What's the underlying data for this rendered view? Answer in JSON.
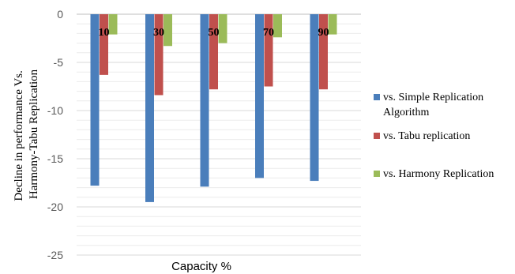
{
  "chart_data": {
    "type": "bar",
    "title": "",
    "xlabel": "Capacity %",
    "ylabel_lines": [
      "Decline in performance Vs.",
      "Harmony-Tabu Replication"
    ],
    "categories": [
      "10",
      "30",
      "50",
      "70",
      "90"
    ],
    "ylim": [
      -25,
      0
    ],
    "yticks": [
      0,
      -5,
      -10,
      -15,
      -20,
      -25
    ],
    "grid": true,
    "legend_position": "right",
    "series": [
      {
        "name": "vs. Simple Replication Algorithm",
        "name_lines": [
          "vs. Simple Replication",
          "Algorithm"
        ],
        "color": "#4a7ebb",
        "values": [
          -17.8,
          -19.5,
          -17.9,
          -17.0,
          -17.3
        ]
      },
      {
        "name": "vs. Tabu replication",
        "name_lines": [
          "vs. Tabu replication"
        ],
        "color": "#c0504d",
        "values": [
          -6.3,
          -8.4,
          -7.8,
          -7.5,
          -7.8
        ]
      },
      {
        "name": "vs. Harmony Replication",
        "name_lines": [
          "vs. Harmony Replication"
        ],
        "color": "#9bbb59",
        "values": [
          -2.1,
          -3.3,
          -3.0,
          -2.4,
          -2.1
        ]
      }
    ]
  }
}
